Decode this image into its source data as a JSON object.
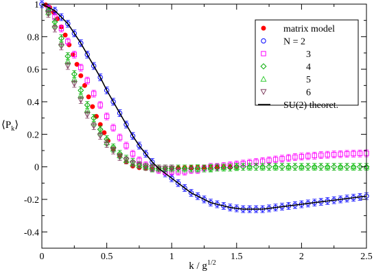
{
  "chart_data": {
    "type": "scatter",
    "xlabel_main": "k / g",
    "xlabel_sup": "1/2",
    "ylabel_main": "⟨P",
    "ylabel_sub": "k",
    "ylabel_end": "⟩",
    "xlim": [
      0,
      2.5
    ],
    "ylim": [
      -0.5,
      1.0
    ],
    "xticks": [
      0,
      0.5,
      1,
      1.5,
      2,
      2.5
    ],
    "xtick_labels": [
      "0",
      "0.5",
      "1",
      "1.5",
      "2",
      "2.5"
    ],
    "yticks": [
      -0.4,
      -0.2,
      0,
      0.2,
      0.4,
      0.6,
      0.8,
      1
    ],
    "ytick_labels": [
      "-0.4",
      "-0.2",
      "0",
      "0.2",
      "0.4",
      "0.6",
      "0.8",
      "1"
    ],
    "grid": false,
    "legend_position": "top-right",
    "series": [
      {
        "name": "matrix model",
        "marker": "filled-circle",
        "color": "#ff0000",
        "x": [
          0.03,
          0.06,
          0.09,
          0.12,
          0.15,
          0.18,
          0.21,
          0.24,
          0.27,
          0.3,
          0.33,
          0.36,
          0.39,
          0.42,
          0.45,
          0.48,
          0.51,
          0.55,
          0.6,
          0.65,
          0.7,
          0.75,
          0.8,
          0.85,
          0.9,
          0.95,
          1.0,
          1.05,
          1.1,
          1.15,
          1.2,
          1.25,
          1.3,
          1.35,
          1.4,
          1.45,
          1.5
        ],
        "y": [
          0.995,
          0.98,
          0.95,
          0.91,
          0.86,
          0.81,
          0.75,
          0.69,
          0.63,
          0.56,
          0.5,
          0.43,
          0.37,
          0.31,
          0.26,
          0.21,
          0.16,
          0.11,
          0.07,
          0.03,
          0.005,
          -0.005,
          -0.01,
          -0.012,
          -0.012,
          -0.01,
          -0.008,
          -0.006,
          -0.005,
          -0.004,
          -0.003,
          -0.002,
          -0.002,
          -0.001,
          0,
          0,
          0
        ]
      },
      {
        "name": "N = 2",
        "marker": "open-circle",
        "color": "#0000ff",
        "x": [
          0,
          0.05,
          0.1,
          0.15,
          0.2,
          0.25,
          0.3,
          0.35,
          0.4,
          0.45,
          0.5,
          0.55,
          0.6,
          0.65,
          0.7,
          0.75,
          0.8,
          0.85,
          0.9,
          0.95,
          1.0,
          1.05,
          1.1,
          1.15,
          1.2,
          1.25,
          1.3,
          1.35,
          1.4,
          1.45,
          1.5,
          1.55,
          1.6,
          1.65,
          1.7,
          1.75,
          1.8,
          1.85,
          1.9,
          1.95,
          2.0,
          2.05,
          2.1,
          2.15,
          2.2,
          2.25,
          2.3,
          2.35,
          2.4,
          2.45,
          2.5
        ],
        "y": [
          1.0,
          0.98,
          0.96,
          0.92,
          0.88,
          0.82,
          0.76,
          0.69,
          0.62,
          0.55,
          0.47,
          0.4,
          0.33,
          0.26,
          0.19,
          0.13,
          0.08,
          0.03,
          -0.01,
          -0.04,
          -0.07,
          -0.1,
          -0.13,
          -0.16,
          -0.18,
          -0.2,
          -0.22,
          -0.23,
          -0.24,
          -0.25,
          -0.255,
          -0.26,
          -0.26,
          -0.26,
          -0.26,
          -0.255,
          -0.25,
          -0.245,
          -0.24,
          -0.235,
          -0.23,
          -0.225,
          -0.22,
          -0.215,
          -0.21,
          -0.205,
          -0.2,
          -0.195,
          -0.19,
          -0.185,
          -0.18
        ]
      },
      {
        "name": "3",
        "marker": "open-square",
        "color": "#ff00ff",
        "x": [
          0.05,
          0.1,
          0.15,
          0.2,
          0.25,
          0.3,
          0.35,
          0.4,
          0.45,
          0.5,
          0.55,
          0.6,
          0.65,
          0.7,
          0.75,
          0.8,
          0.85,
          0.9,
          0.95,
          1.0,
          1.05,
          1.1,
          1.15,
          1.2,
          1.25,
          1.3,
          1.35,
          1.4,
          1.45,
          1.5,
          1.55,
          1.6,
          1.65,
          1.7,
          1.75,
          1.8,
          1.85,
          1.9,
          1.95,
          2.0,
          2.05,
          2.1,
          2.15,
          2.2,
          2.25,
          2.3,
          2.35,
          2.4,
          2.45,
          2.5
        ],
        "y": [
          0.97,
          0.92,
          0.85,
          0.77,
          0.69,
          0.61,
          0.53,
          0.45,
          0.38,
          0.31,
          0.24,
          0.18,
          0.13,
          0.08,
          0.04,
          0.01,
          -0.01,
          -0.02,
          -0.03,
          -0.03,
          -0.03,
          -0.03,
          -0.02,
          -0.02,
          -0.01,
          0,
          0,
          0.005,
          0.01,
          0.015,
          0.02,
          0.025,
          0.03,
          0.035,
          0.04,
          0.045,
          0.05,
          0.055,
          0.06,
          0.063,
          0.066,
          0.069,
          0.072,
          0.074,
          0.076,
          0.078,
          0.08,
          0.081,
          0.082,
          0.083
        ]
      },
      {
        "name": "4",
        "marker": "open-diamond",
        "color": "#00aa00",
        "x": [
          0.05,
          0.1,
          0.15,
          0.2,
          0.25,
          0.3,
          0.35,
          0.4,
          0.45,
          0.5,
          0.55,
          0.6,
          0.65,
          0.7,
          0.75,
          0.8,
          0.85,
          0.9,
          0.95,
          1.0,
          1.05,
          1.1,
          1.15,
          1.2,
          1.25,
          1.3,
          1.35,
          1.4,
          1.45,
          1.5,
          1.55,
          1.6,
          1.65,
          1.7,
          1.75,
          1.8,
          1.85,
          1.9,
          1.95,
          2.0,
          2.05,
          2.1,
          2.15,
          2.2,
          2.25,
          2.3,
          2.35,
          2.4,
          2.45,
          2.5
        ],
        "y": [
          0.96,
          0.89,
          0.79,
          0.68,
          0.57,
          0.47,
          0.38,
          0.3,
          0.23,
          0.17,
          0.12,
          0.08,
          0.05,
          0.03,
          0.01,
          0,
          -0.01,
          -0.01,
          -0.01,
          -0.01,
          -0.01,
          -0.01,
          -0.01,
          -0.01,
          -0.01,
          -0.01,
          -0.005,
          -0.005,
          -0.005,
          0,
          0,
          0,
          0,
          0,
          0,
          0,
          0,
          0,
          0,
          0,
          0,
          0,
          0,
          0,
          0,
          0,
          0,
          0,
          0,
          0
        ]
      },
      {
        "name": "5",
        "marker": "open-triangle-up",
        "color": "#33cc33",
        "x": [
          0.05,
          0.1,
          0.15,
          0.2,
          0.25,
          0.3,
          0.35,
          0.4,
          0.45,
          0.5,
          0.55,
          0.6,
          0.65,
          0.7,
          0.75,
          0.8,
          0.85,
          0.9,
          0.95,
          1.0,
          1.1,
          1.2,
          1.3,
          1.4,
          1.5,
          1.6,
          1.7,
          1.8,
          1.9,
          2.0,
          2.1,
          2.2,
          2.3,
          2.4,
          2.5
        ],
        "y": [
          0.95,
          0.87,
          0.76,
          0.65,
          0.54,
          0.44,
          0.35,
          0.27,
          0.21,
          0.15,
          0.11,
          0.07,
          0.04,
          0.02,
          0.01,
          0,
          -0.005,
          -0.01,
          -0.01,
          -0.01,
          -0.01,
          -0.008,
          -0.006,
          -0.004,
          -0.002,
          0,
          0,
          0,
          0,
          0,
          0,
          0,
          0,
          0,
          0
        ]
      },
      {
        "name": "6",
        "marker": "open-triangle-down",
        "color": "#7f3f5f",
        "x": [
          0.05,
          0.1,
          0.15,
          0.2,
          0.25,
          0.3,
          0.35,
          0.4,
          0.45,
          0.5,
          0.55,
          0.6,
          0.65,
          0.7,
          0.75,
          0.8,
          0.85,
          0.9,
          0.95,
          1.0
        ],
        "y": [
          0.94,
          0.85,
          0.74,
          0.62,
          0.51,
          0.41,
          0.32,
          0.25,
          0.19,
          0.14,
          0.1,
          0.06,
          0.04,
          0.02,
          0.01,
          0,
          -0.005,
          -0.01,
          -0.01,
          -0.01
        ]
      },
      {
        "name": "SU(2) theoret.",
        "marker": "line",
        "color": "#000000",
        "x": [
          0,
          0.05,
          0.1,
          0.15,
          0.2,
          0.25,
          0.3,
          0.35,
          0.4,
          0.45,
          0.5,
          0.55,
          0.6,
          0.65,
          0.7,
          0.75,
          0.8,
          0.85,
          0.9,
          0.95,
          1.0,
          1.05,
          1.1,
          1.15,
          1.2,
          1.25,
          1.3,
          1.35,
          1.4,
          1.45,
          1.5,
          1.55,
          1.6,
          1.65,
          1.7,
          1.75,
          1.8,
          1.85,
          1.9,
          1.95,
          2.0,
          2.05,
          2.1,
          2.15,
          2.2,
          2.25,
          2.3,
          2.35,
          2.4,
          2.45,
          2.5
        ],
        "y": [
          1.0,
          0.98,
          0.96,
          0.92,
          0.88,
          0.82,
          0.76,
          0.69,
          0.62,
          0.55,
          0.47,
          0.4,
          0.33,
          0.26,
          0.19,
          0.13,
          0.08,
          0.03,
          -0.01,
          -0.04,
          -0.07,
          -0.1,
          -0.13,
          -0.16,
          -0.18,
          -0.2,
          -0.22,
          -0.23,
          -0.24,
          -0.25,
          -0.255,
          -0.26,
          -0.26,
          -0.26,
          -0.26,
          -0.255,
          -0.25,
          -0.245,
          -0.24,
          -0.235,
          -0.23,
          -0.225,
          -0.22,
          -0.215,
          -0.21,
          -0.205,
          -0.2,
          -0.195,
          -0.19,
          -0.185,
          -0.18
        ]
      }
    ]
  }
}
